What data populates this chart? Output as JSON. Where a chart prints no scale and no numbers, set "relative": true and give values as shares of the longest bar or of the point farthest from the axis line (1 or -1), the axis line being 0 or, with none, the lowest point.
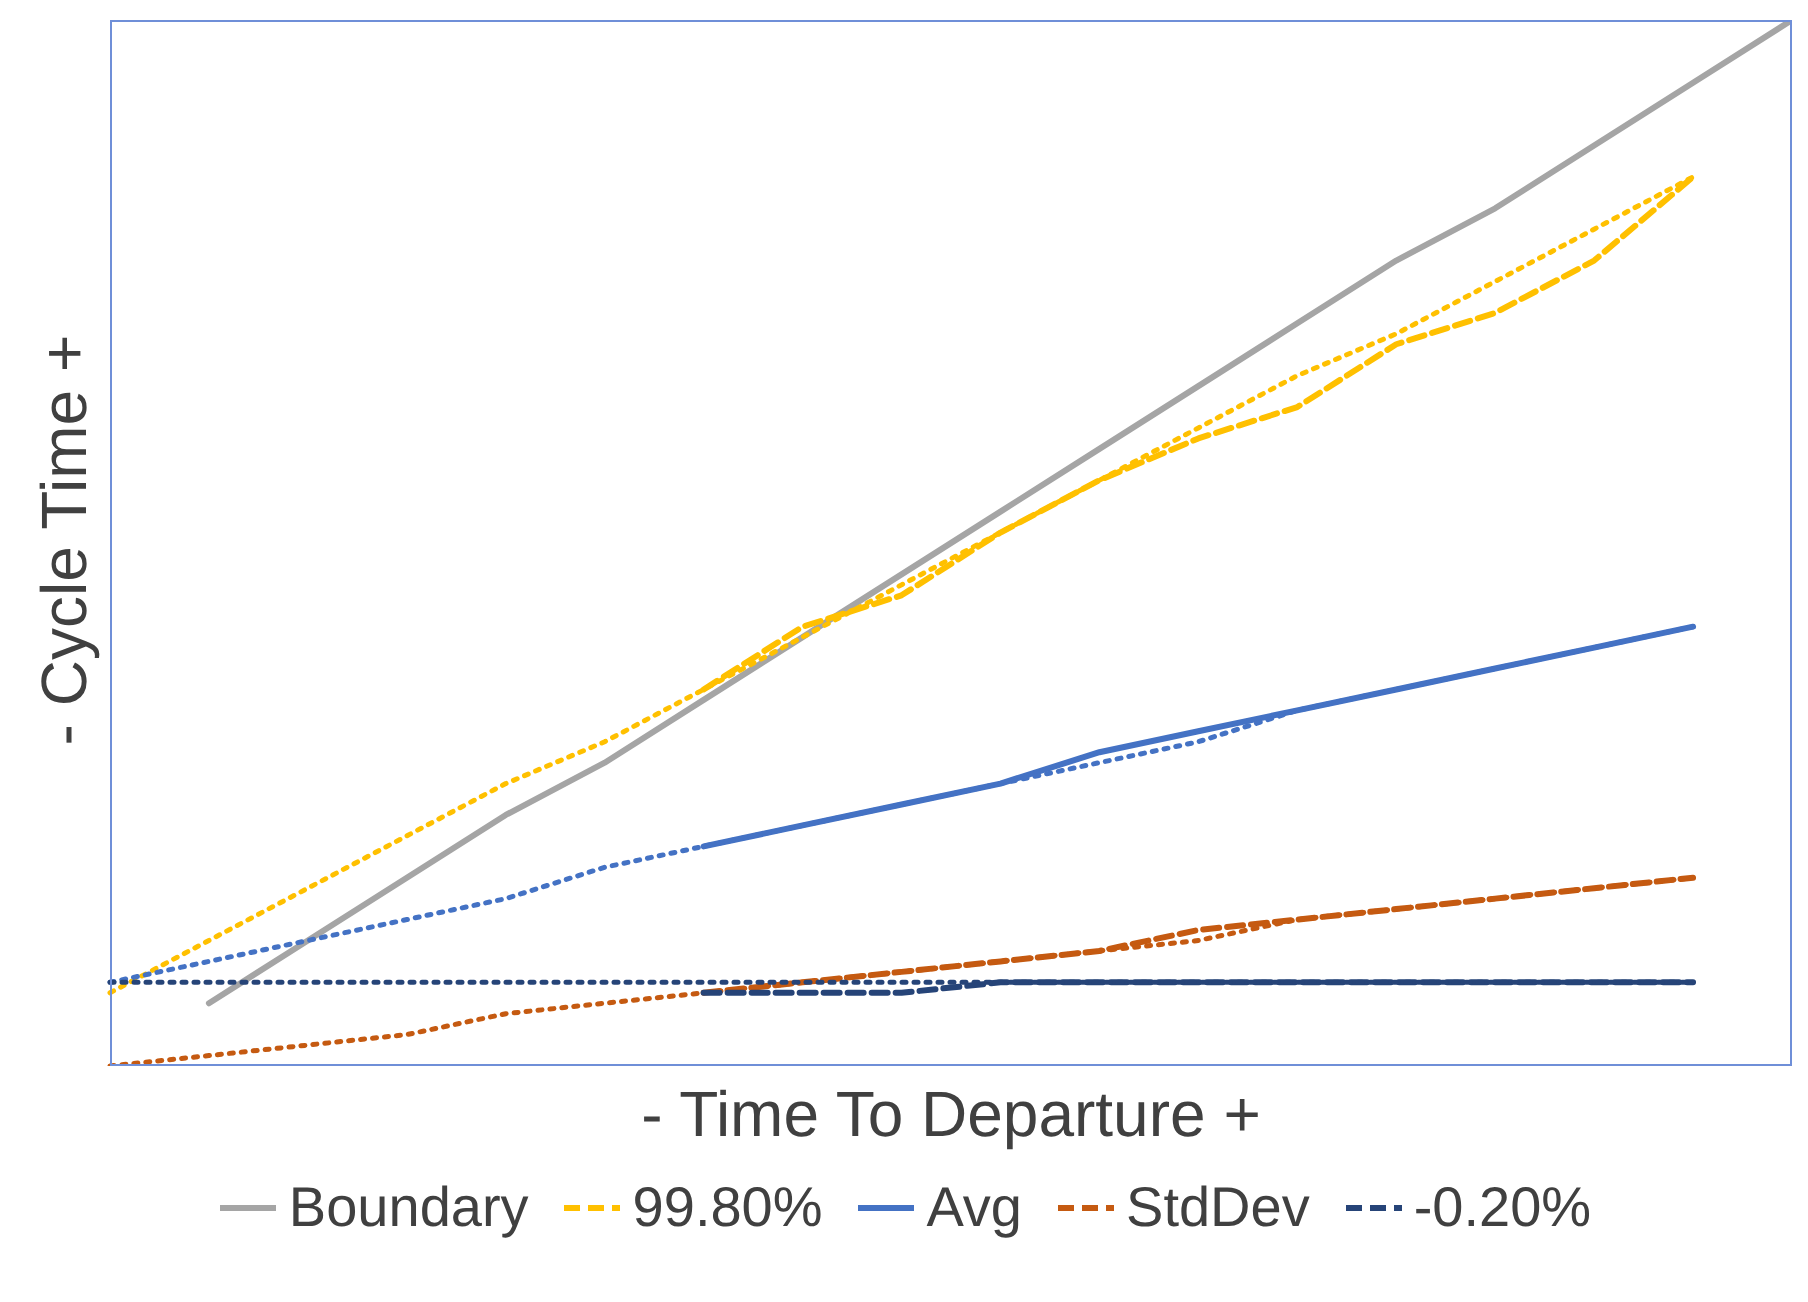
{
  "chart_data": {
    "type": "line",
    "relative": true,
    "xlabel": "- Time To Departure +",
    "ylabel": "- Cycle Time +",
    "legend": "bottom",
    "grid": false,
    "categories": [
      null,
      null,
      null,
      null,
      null,
      null,
      null,
      null,
      null,
      null,
      null,
      null,
      null,
      null,
      null,
      null,
      null,
      null
    ],
    "series": [
      {
        "name": "Boundary",
        "color": "#a5a5a5",
        "line_style": "solid",
        "values": [
          null,
          0.06,
          0.12,
          0.18,
          0.24,
          0.29,
          0.35,
          0.41,
          0.47,
          0.53,
          0.59,
          0.65,
          0.71,
          0.77,
          0.82,
          0.88,
          0.94,
          1.0
        ]
      },
      {
        "name": "99.80%",
        "color": "#ffc000",
        "line_style": "dashed",
        "values": [
          null,
          null,
          null,
          null,
          null,
          null,
          0.36,
          0.42,
          0.45,
          0.51,
          0.56,
          0.6,
          0.63,
          0.69,
          0.72,
          0.77,
          0.85,
          null
        ]
      },
      {
        "color": "#ffc000",
        "line_style": "dotted",
        "values": [
          0.07,
          0.12,
          0.17,
          0.22,
          0.27,
          0.31,
          0.36,
          0.41,
          0.46,
          0.51,
          0.56,
          0.61,
          0.66,
          0.7,
          0.75,
          0.8,
          0.85,
          null
        ]
      },
      {
        "name": "Avg",
        "color": "#4472c4",
        "line_style": "solid",
        "values": [
          null,
          null,
          null,
          null,
          null,
          null,
          0.21,
          0.23,
          0.25,
          0.27,
          0.3,
          0.32,
          0.34,
          0.36,
          0.38,
          0.4,
          0.42,
          null
        ]
      },
      {
        "color": "#4472c4",
        "line_style": "dotted",
        "values": [
          0.08,
          0.1,
          0.12,
          0.14,
          0.16,
          0.19,
          0.21,
          0.23,
          0.25,
          0.27,
          0.29,
          0.31,
          0.34,
          0.36,
          0.38,
          0.4,
          0.42,
          null
        ]
      },
      {
        "name": "StdDev",
        "color": "#c55a11",
        "line_style": "dashed",
        "values": [
          null,
          null,
          null,
          null,
          null,
          null,
          0.07,
          0.08,
          0.09,
          0.1,
          0.11,
          0.13,
          0.14,
          0.15,
          0.16,
          0.17,
          0.18,
          null
        ]
      },
      {
        "color": "#c55a11",
        "line_style": "dotted",
        "values": [
          0,
          0.01,
          0.02,
          0.03,
          0.05,
          0.06,
          0.07,
          0.08,
          0.09,
          0.1,
          0.11,
          0.12,
          0.14,
          0.15,
          0.16,
          0.17,
          0.18,
          null
        ]
      },
      {
        "name": "-0.20%",
        "color": "#264478",
        "line_style": "dashed",
        "values": [
          null,
          null,
          null,
          null,
          null,
          null,
          0.07,
          0.07,
          0.07,
          0.08,
          0.08,
          0.08,
          0.08,
          0.08,
          0.08,
          0.08,
          0.08,
          null
        ]
      },
      {
        "color": "#264478",
        "line_style": "dotted",
        "values": [
          0.08,
          0.08,
          0.08,
          0.08,
          0.08,
          0.08,
          0.08,
          0.08,
          0.08,
          0.08,
          0.08,
          0.08,
          0.08,
          0.08,
          0.08,
          0.08,
          0.08,
          null
        ]
      }
    ]
  }
}
